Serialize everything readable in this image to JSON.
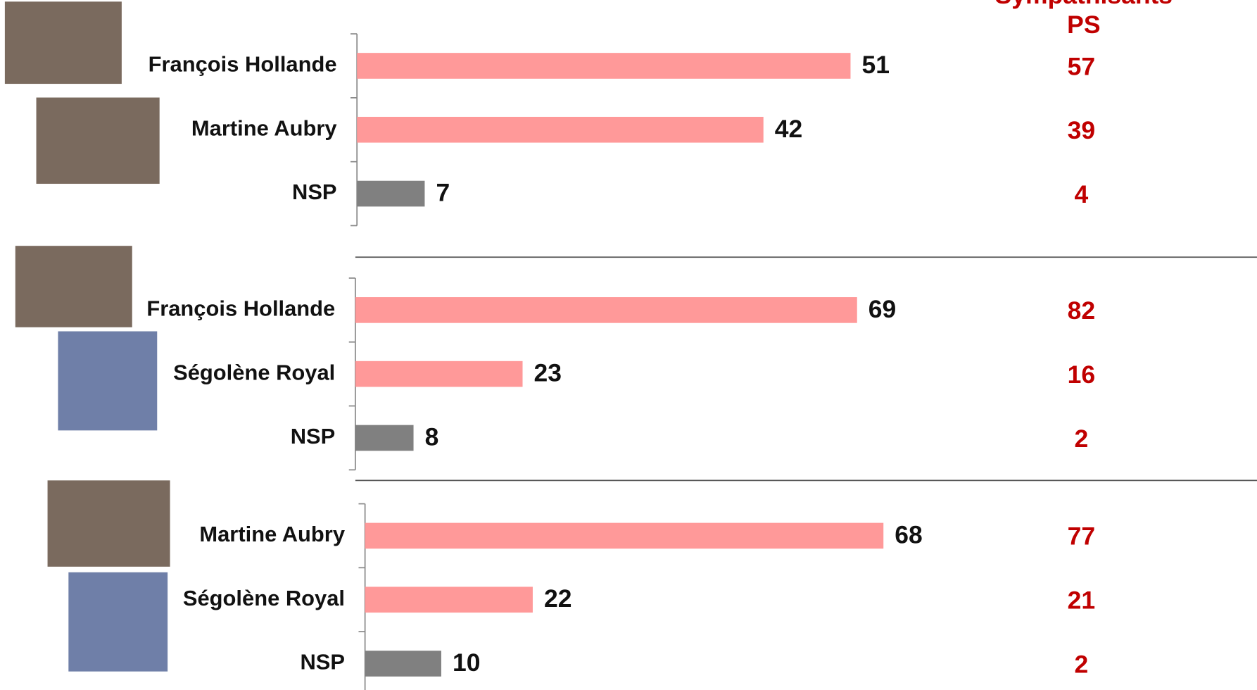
{
  "column_header": [
    "Sympathisants",
    "PS"
  ],
  "chart_data": [
    {
      "type": "bar",
      "categories": [
        "François Hollande",
        "Martine Aubry",
        "NSP"
      ],
      "values": [
        51,
        42,
        7
      ],
      "colors": [
        "#ff9999",
        "#ff9999",
        "#808080"
      ],
      "ps_values": [
        57,
        39,
        4
      ],
      "xlim": [
        0,
        93
      ]
    },
    {
      "type": "bar",
      "categories": [
        "François Hollande",
        "Ségolène Royal",
        "NSP"
      ],
      "values": [
        69,
        23,
        8
      ],
      "colors": [
        "#ff9999",
        "#ff9999",
        "#808080"
      ],
      "ps_values": [
        82,
        16,
        2
      ],
      "xlim": [
        0,
        124
      ]
    },
    {
      "type": "bar",
      "categories": [
        "Martine Aubry",
        "Ségolène Royal",
        "NSP"
      ],
      "values": [
        68,
        22,
        10
      ],
      "colors": [
        "#ff9999",
        "#ff9999",
        "#808080"
      ],
      "ps_values": [
        77,
        21,
        2
      ],
      "xlim": [
        0,
        117
      ]
    }
  ]
}
